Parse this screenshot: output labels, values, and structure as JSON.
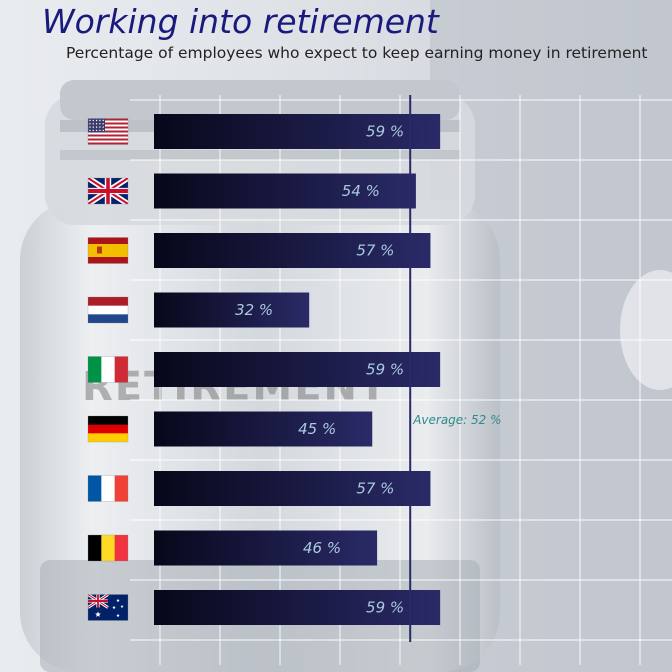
{
  "header": {
    "title": "Working into retirement",
    "subtitle": "Percentage of employees who expect to keep earning money in retirement"
  },
  "background": {
    "jar_label_text": "RETIREMENT"
  },
  "colors": {
    "bar_dark": "#07071a",
    "bar_light": "#2a2a68",
    "avg_line": "#2a2a68",
    "title": "#1a1a7e",
    "value_label": "#a9c9de",
    "avg_label": "#2d8a8c"
  },
  "chart_data": {
    "type": "bar",
    "orientation": "horizontal",
    "categories": [
      "United States",
      "United Kingdom",
      "Spain",
      "Netherlands",
      "Italy",
      "Germany",
      "France",
      "Belgium",
      "Australia"
    ],
    "category_icons": [
      "flag-usa-icon",
      "flag-uk-icon",
      "flag-spain-icon",
      "flag-netherlands-icon",
      "flag-italy-icon",
      "flag-germany-icon",
      "flag-france-icon",
      "flag-belgium-icon",
      "flag-australia-icon"
    ],
    "values": [
      59,
      54,
      57,
      32,
      59,
      45,
      57,
      46,
      59
    ],
    "value_labels": [
      "59 %",
      "54 %",
      "57 %",
      "32 %",
      "59 %",
      "45 %",
      "57 %",
      "46 %",
      "59 %"
    ],
    "average": 52,
    "average_label": "Average: 52 %",
    "xlim": [
      0,
      100
    ],
    "grid": true
  }
}
